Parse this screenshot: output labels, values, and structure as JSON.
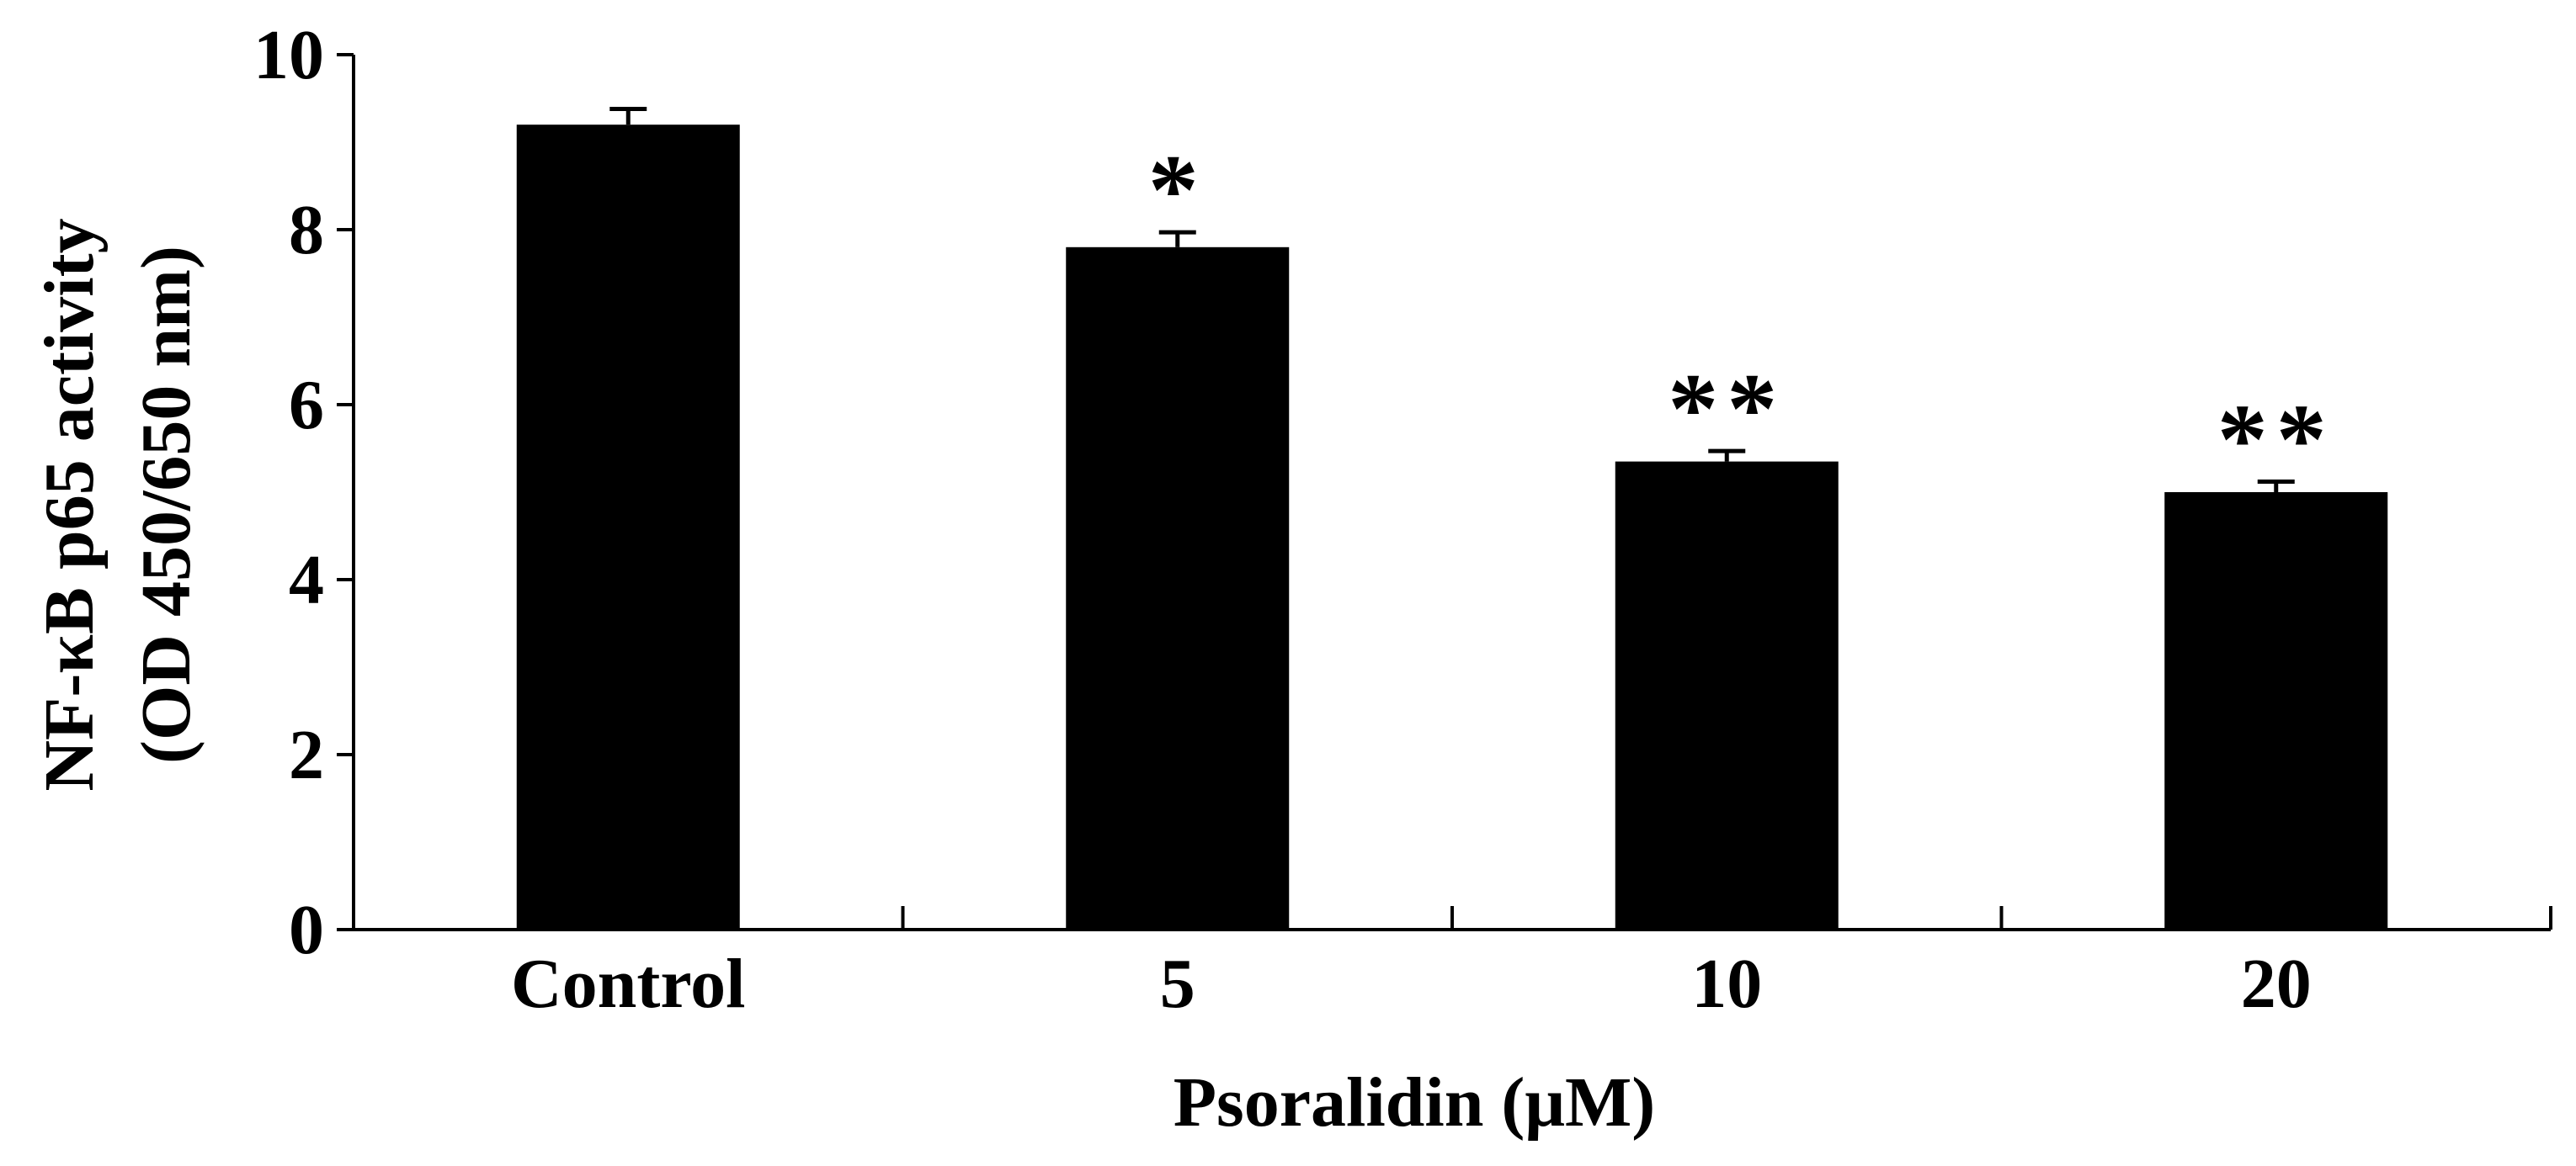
{
  "chart_data": {
    "type": "bar",
    "categories": [
      "Control",
      "5",
      "10",
      "20"
    ],
    "values": [
      9.2,
      7.8,
      5.35,
      5.0
    ],
    "errors": [
      0.18,
      0.17,
      0.12,
      0.12
    ],
    "significance": [
      "",
      "*",
      "**",
      "**"
    ],
    "xlabel": "Psoralidin (μM)",
    "ylabel_line1": "NF-κB p65 activity",
    "ylabel_line2": "(OD 450/650 nm)",
    "ylim": [
      0,
      10
    ],
    "yticks": [
      "0",
      "2",
      "4",
      "6",
      "8",
      "10"
    ],
    "bar_color": "#000000",
    "grid": false,
    "legend": "none"
  }
}
